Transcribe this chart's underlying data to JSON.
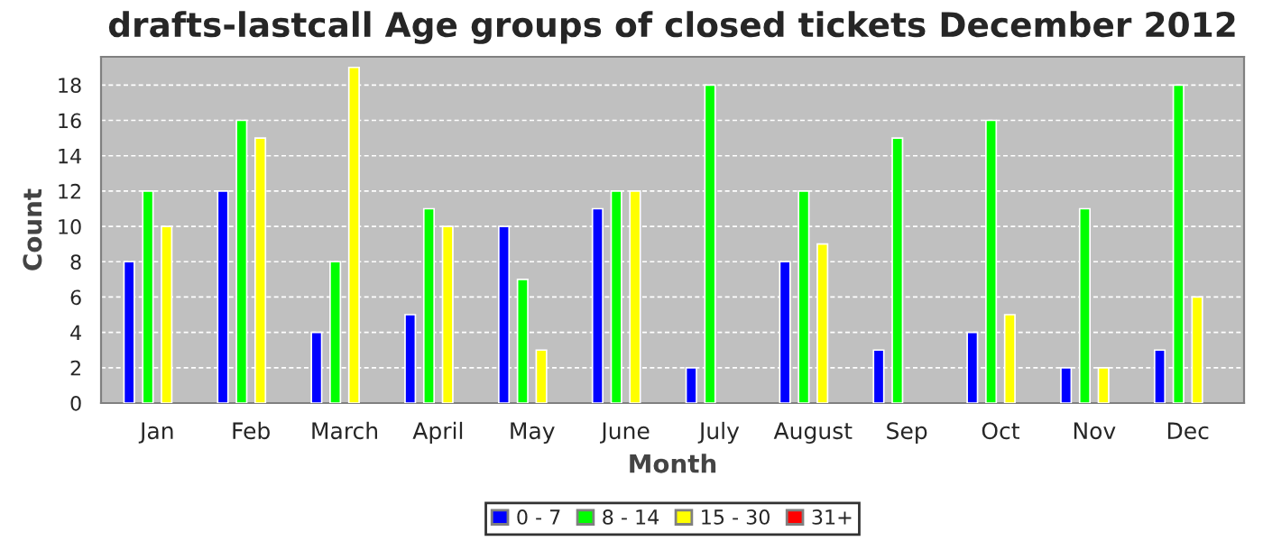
{
  "chart_data": {
    "type": "bar",
    "title": "drafts-lastcall Age groups of closed tickets December 2012",
    "xlabel": "Month",
    "ylabel": "Count",
    "categories": [
      "Jan",
      "Feb",
      "March",
      "April",
      "May",
      "June",
      "July",
      "August",
      "Sep",
      "Oct",
      "Nov",
      "Dec"
    ],
    "series": [
      {
        "name": "0 - 7",
        "color": "#0000ff",
        "values": [
          8,
          12,
          4,
          5,
          10,
          11,
          2,
          8,
          3,
          4,
          2,
          3
        ]
      },
      {
        "name": "8 - 14",
        "color": "#00ff00",
        "values": [
          12,
          16,
          8,
          11,
          7,
          12,
          18,
          12,
          15,
          16,
          11,
          18
        ]
      },
      {
        "name": "15 - 30",
        "color": "#ffff00",
        "values": [
          10,
          15,
          19,
          10,
          3,
          12,
          0,
          9,
          0,
          5,
          2,
          6
        ]
      },
      {
        "name": "31+",
        "color": "#ff0000",
        "values": [
          0,
          0,
          0,
          0,
          0,
          0,
          0,
          0,
          0,
          0,
          0,
          0
        ]
      }
    ],
    "ylim": [
      0,
      19.6
    ],
    "yticks": [
      0,
      2,
      4,
      6,
      8,
      10,
      12,
      14,
      16,
      18
    ],
    "grid": "y",
    "legend": "bottom"
  }
}
